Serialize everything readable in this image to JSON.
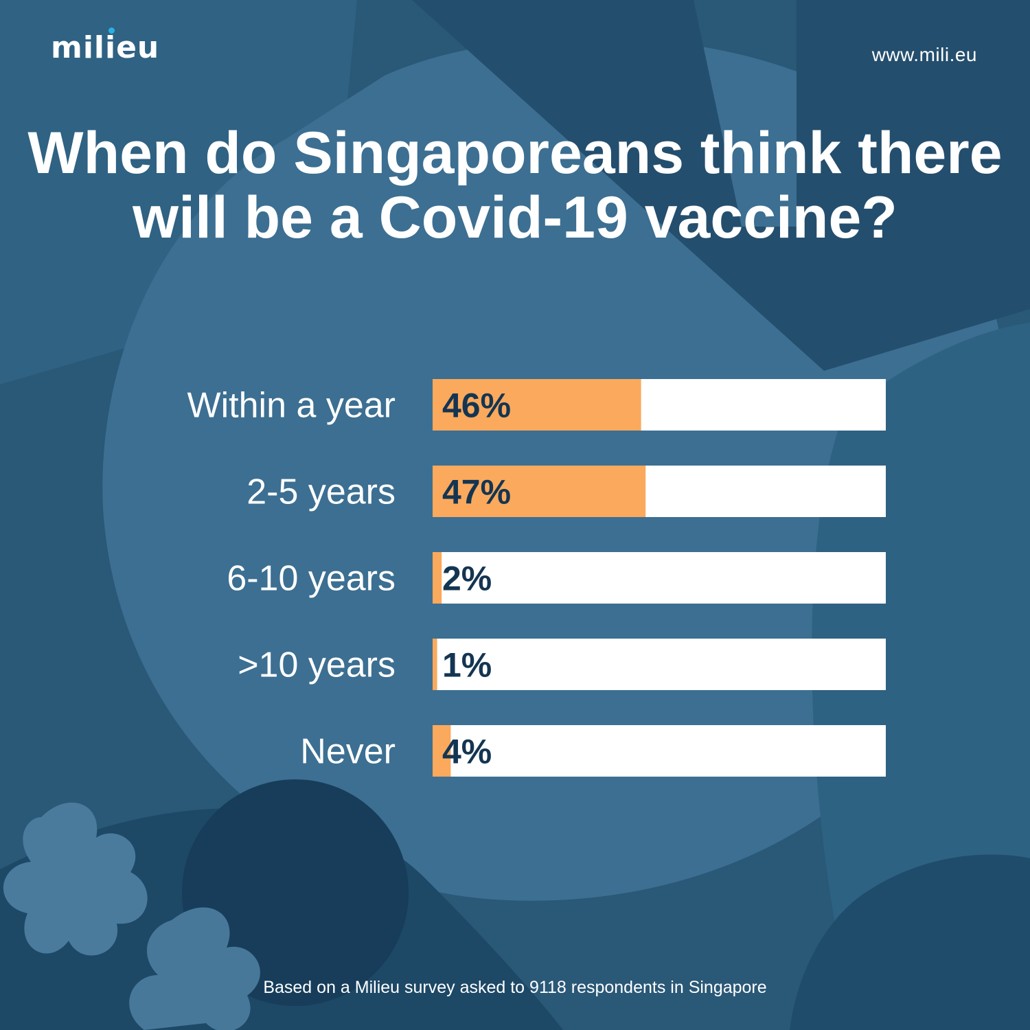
{
  "brand": {
    "logo_text": "milieu",
    "url": "www.mili.eu"
  },
  "colors": {
    "background": "#2a5877",
    "bar_fill": "#fba95c",
    "bar_track": "#ffffff",
    "value_text": "#143552",
    "text": "#ffffff"
  },
  "chart_data": {
    "type": "bar",
    "orientation": "horizontal",
    "title": "When do Singaporeans think there will be a Covid-19 vaccine?",
    "categories": [
      "Within a year",
      "2-5 years",
      "6-10 years",
      ">10 years",
      "Never"
    ],
    "values": [
      46,
      47,
      2,
      1,
      4
    ],
    "value_labels": [
      "46%",
      "47%",
      "2%",
      "1%",
      "4%"
    ],
    "unit": "%",
    "xlim": [
      0,
      100
    ],
    "grid": false,
    "legend": "none"
  },
  "footnote": "Based on a Milieu survey asked to 9118 respondents in Singapore"
}
